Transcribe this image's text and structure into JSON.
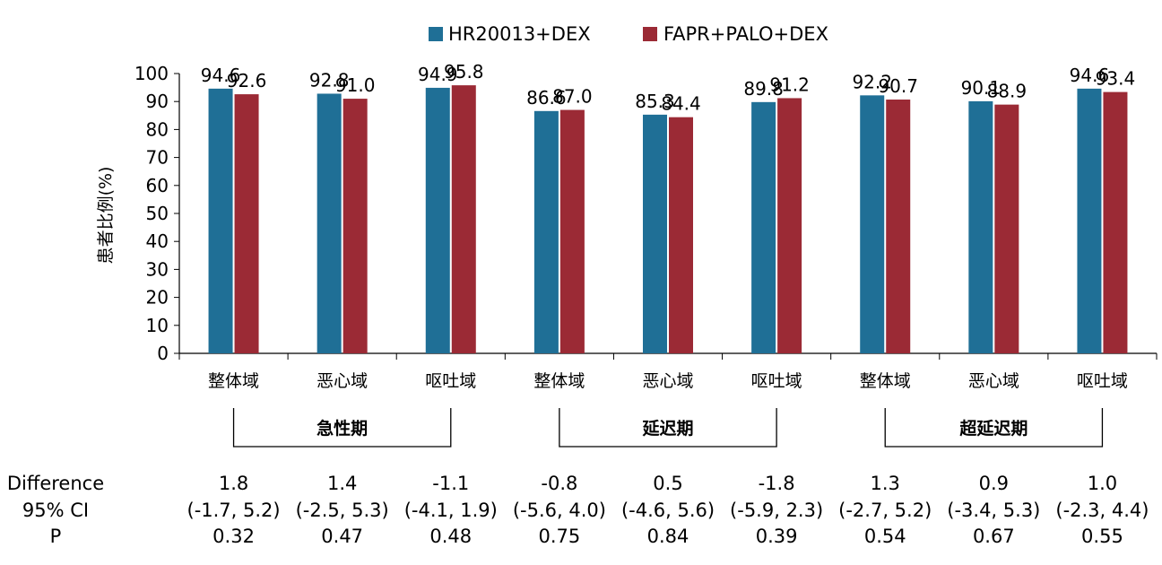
{
  "chart_data": {
    "type": "bar",
    "title": "",
    "ylabel": "患者比例(%)",
    "ylim": [
      0,
      100
    ],
    "yticks": [
      0,
      10,
      20,
      30,
      40,
      50,
      60,
      70,
      80,
      90,
      100
    ],
    "grid": false,
    "legend_position": "top-center",
    "categories": [
      "整体域",
      "恶心域",
      "呕吐域",
      "整体域",
      "恶心域",
      "呕吐域",
      "整体域",
      "恶心域",
      "呕吐域"
    ],
    "groups": [
      {
        "label": "急性期",
        "span": [
          0,
          2
        ]
      },
      {
        "label": "延迟期",
        "span": [
          3,
          5
        ]
      },
      {
        "label": "超延迟期",
        "span": [
          6,
          8
        ]
      }
    ],
    "series": [
      {
        "name": "HR20013+DEX",
        "color": "#1f6f96",
        "values": [
          94.6,
          92.8,
          94.9,
          86.6,
          85.3,
          89.8,
          92.2,
          90.1,
          94.6
        ],
        "labels": [
          "94.6",
          "92.8",
          "94.9",
          "86.6",
          "85.3",
          "89.8",
          "92.2",
          "90.1",
          "94.6"
        ]
      },
      {
        "name": "FAPR+PALO+DEX",
        "color": "#9b2a35",
        "values": [
          92.6,
          91.0,
          95.8,
          87.0,
          84.4,
          91.2,
          90.7,
          88.9,
          93.4
        ],
        "labels": [
          "92.6",
          "91.0",
          "95.8",
          "87.0",
          "84.4",
          "91.2",
          "90.7",
          "88.9",
          "93.4"
        ]
      }
    ],
    "stats": {
      "row_labels": [
        "Difference",
        "95% CI",
        "P"
      ],
      "difference": [
        "1.8",
        "1.4",
        "-1.1",
        "-0.8",
        "0.5",
        "-1.8",
        "1.3",
        "0.9",
        "1.0"
      ],
      "ci": [
        "(-1.7, 5.2)",
        "(-2.5, 5.3)",
        "(-4.1, 1.9)",
        "(-5.6, 4.0)",
        "(-4.6, 5.6)",
        "(-5.9, 2.3)",
        "(-2.7, 5.2)",
        "(-3.4, 5.3)",
        "(-2.3, 4.4)"
      ],
      "p": [
        "0.32",
        "0.47",
        "0.48",
        "0.75",
        "0.84",
        "0.39",
        "0.54",
        "0.67",
        "0.55"
      ]
    }
  }
}
